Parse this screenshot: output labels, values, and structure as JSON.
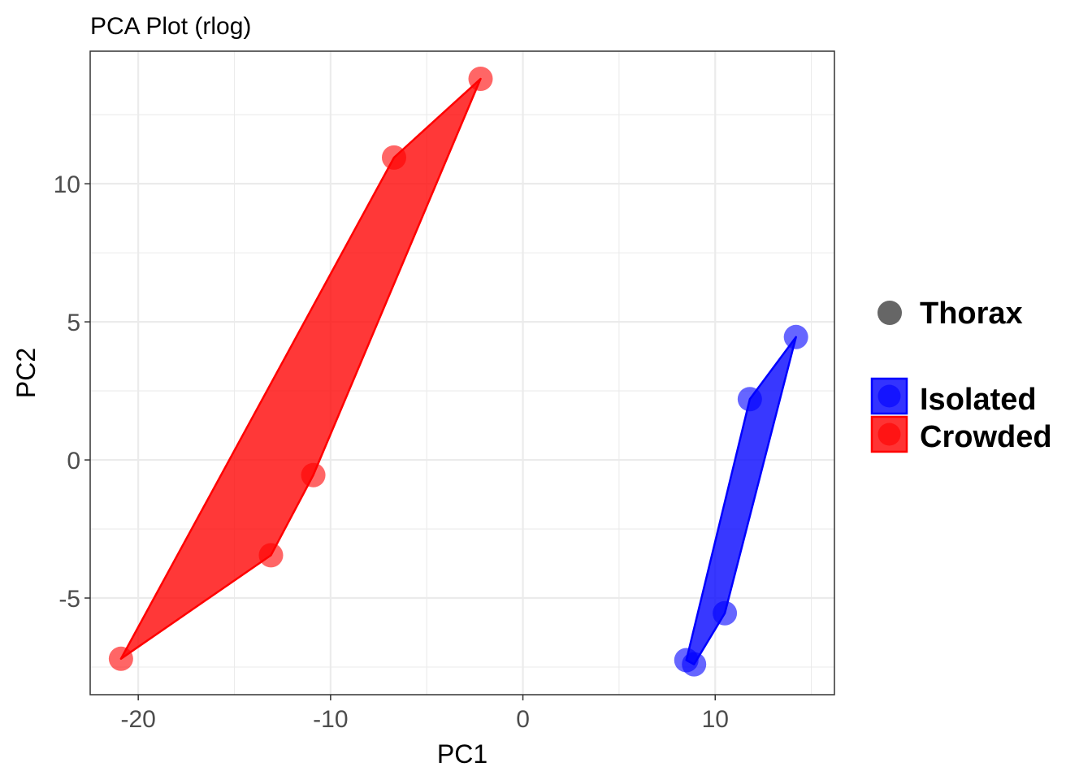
{
  "chart_data": {
    "type": "scatter",
    "title": "PCA Plot (rlog)",
    "xlabel": "PC1",
    "ylabel": "PC2",
    "xlim": [
      -22.5,
      16.2
    ],
    "ylim": [
      -8.5,
      14.8
    ],
    "x_ticks": [
      -20,
      -10,
      0,
      10
    ],
    "x_tick_labels": [
      "-20",
      "-10",
      "0",
      "10"
    ],
    "y_ticks": [
      -5,
      0,
      5,
      10
    ],
    "y_tick_labels": [
      "-5",
      "0",
      "5",
      "10"
    ],
    "grid": true,
    "legend_position": "right",
    "shape_legend": {
      "label": "Thorax",
      "color": "#666666"
    },
    "series": [
      {
        "name": "Isolated",
        "color": "#0000ff",
        "points": [
          {
            "x": 8.5,
            "y": -7.25
          },
          {
            "x": 8.9,
            "y": -7.4
          },
          {
            "x": 10.5,
            "y": -5.55
          },
          {
            "x": 11.8,
            "y": 2.2
          },
          {
            "x": 14.2,
            "y": 4.45
          }
        ],
        "hull": [
          {
            "x": 8.5,
            "y": -7.25
          },
          {
            "x": 8.9,
            "y": -7.4
          },
          {
            "x": 10.5,
            "y": -5.55
          },
          {
            "x": 14.2,
            "y": 4.45
          },
          {
            "x": 11.8,
            "y": 2.2
          }
        ]
      },
      {
        "name": "Crowded",
        "color": "#ff0000",
        "points": [
          {
            "x": -20.9,
            "y": -7.2
          },
          {
            "x": -13.1,
            "y": -3.45
          },
          {
            "x": -10.9,
            "y": -0.55
          },
          {
            "x": -6.7,
            "y": 10.95
          },
          {
            "x": -2.2,
            "y": 13.8
          }
        ],
        "hull": [
          {
            "x": -20.9,
            "y": -7.2
          },
          {
            "x": -13.1,
            "y": -3.45
          },
          {
            "x": -10.9,
            "y": -0.55
          },
          {
            "x": -2.2,
            "y": 13.8
          },
          {
            "x": -6.7,
            "y": 10.95
          }
        ]
      }
    ]
  }
}
